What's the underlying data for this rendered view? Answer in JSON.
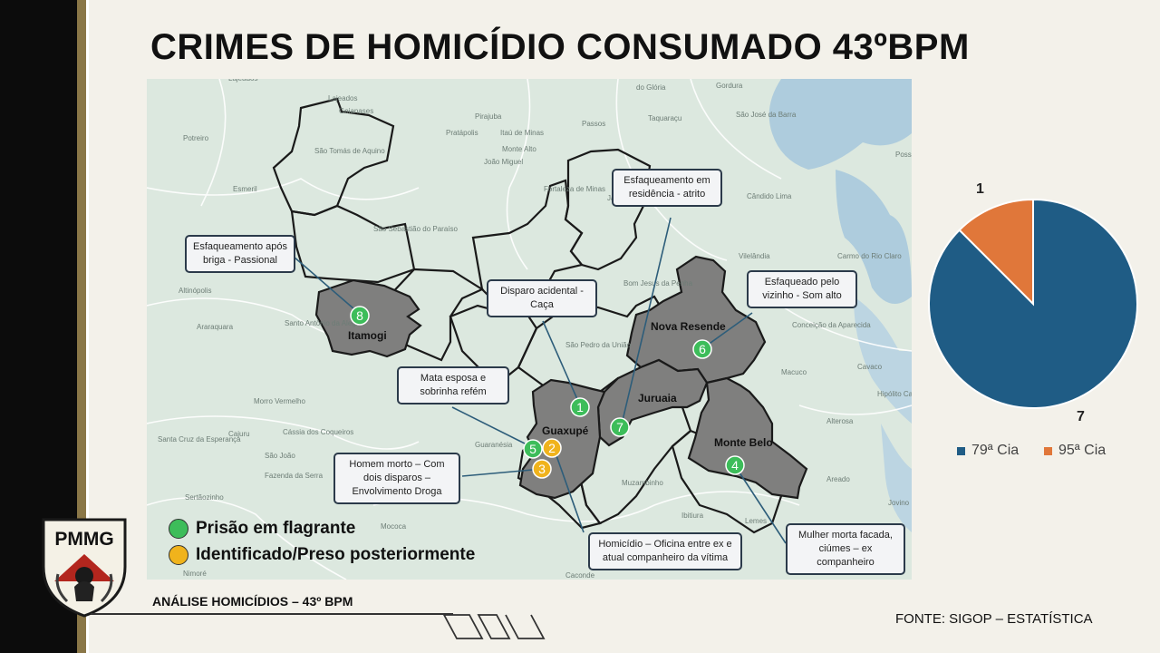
{
  "title": "CRIMES DE HOMICÍDIO CONSUMADO 43ºBPM",
  "logo_text": "PMMG",
  "colors": {
    "region_fill": "#7f7f7e",
    "green_marker": "#3dbd5a",
    "yellow_marker": "#f0b31c",
    "pie_blue": "#1f5c85",
    "pie_orange": "#e0773a",
    "sidebar_gold": "#8a7748"
  },
  "map": {
    "regions": [
      "Itamogi",
      "Nova Resende",
      "Guaxupé",
      "Juruaia",
      "Monte Belo"
    ],
    "place_names": [
      "Lajeados",
      "Goianases",
      "Pirajuba",
      "Passos",
      "Taquaraçu",
      "São José da Barra",
      "São Tomás de Aquino",
      "Pratápolis",
      "Itaú de Minas",
      "Potreiro",
      "Monte Alto",
      "João Miguel",
      "Fortaleza de Minas",
      "Esmeril",
      "Jacuí",
      "Alpinópolis",
      "Cândido Lima",
      "São Sebastião do Paraíso",
      "Vilelândia",
      "Carmo do Rio Claro",
      "Altinópolis",
      "Bom Jesus da Penha",
      "Santo Antônio da Alegria",
      "Araraquara",
      "São Pedro da União",
      "Conceição da Aparecida",
      "Macuco",
      "Cavaco",
      "Morro Vermelho",
      "Hipólito Candeias",
      "Cajuru",
      "Santa Cruz da Esperança",
      "Cássia dos Coqueiros",
      "São João",
      "Guaranésia",
      "Alterosa",
      "Fazenda da Serra",
      "Sertãozinho",
      "Muzambinho",
      "Areado",
      "Jovino",
      "Mococa",
      "Nimoré",
      "Caconde",
      "Posse",
      "do Glória",
      "Gordura",
      "Lemes",
      "Ibitiura"
    ],
    "markers": [
      {
        "num": "1",
        "type": "green"
      },
      {
        "num": "2",
        "type": "yellow"
      },
      {
        "num": "3",
        "type": "yellow"
      },
      {
        "num": "4",
        "type": "green"
      },
      {
        "num": "5",
        "type": "green"
      },
      {
        "num": "6",
        "type": "green"
      },
      {
        "num": "7",
        "type": "green"
      },
      {
        "num": "8",
        "type": "green"
      }
    ]
  },
  "callouts": {
    "c_juruaia": "Esfaqueamento em residência - atrito",
    "c_itamogi": "Esfaqueamento após briga - Passional",
    "c_disparo": "Disparo acidental - Caça",
    "c_nova": "Esfaqueado pelo vizinho - Som alto",
    "c_mata": "Mata esposa e sobrinha refém",
    "c_homem": "Homem morto – Com dois disparos – Envolvimento Droga",
    "c_oficina": "Homicídio – Oficina entre ex e atual companheiro da vítima",
    "c_mulher": "Mulher morta facada, ciúmes – ex companheiro"
  },
  "legend": {
    "green_label": "Prisão em flagrante",
    "yellow_label": "Identificado/Preso posteriormente"
  },
  "chart_data": {
    "type": "pie",
    "categories": [
      "79ª Cia",
      "95ª Cia"
    ],
    "values": [
      7,
      1
    ],
    "legend_position": "bottom",
    "colors": [
      "#1f5c85",
      "#e0773a"
    ]
  },
  "footer": {
    "label": "ANÁLISE HOMICÍDIOS – 43º BPM",
    "source": "FONTE: SIGOP – ESTATÍSTICA"
  }
}
